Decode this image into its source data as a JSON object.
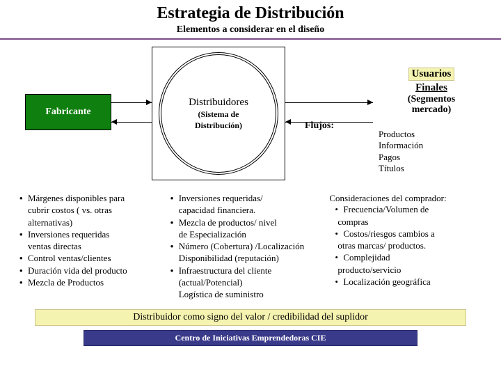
{
  "header": {
    "title": "Estrategia de Distribución",
    "subtitle": "Elementos a considerar en el diseño"
  },
  "diagram": {
    "fabricante": {
      "label": "Fabricante",
      "bg": "#0f7f0f"
    },
    "distribuidores": {
      "title": "Distribuidores",
      "sub1": "(Sistema de",
      "sub2": "Distribución)"
    },
    "usuarios": {
      "title": "Usuarios",
      "finales": "Finales",
      "seg1": "(Segmentos",
      "seg2": "mercado)"
    },
    "flujos": {
      "label": "Flujos:",
      "items": [
        "Productos",
        "Información",
        "Pagos",
        "Títulos"
      ]
    }
  },
  "columns": {
    "col1": [
      {
        "t": "b",
        "text": "Márgenes disponibles para"
      },
      {
        "t": "plain",
        "text": "cubrir costos ( vs. otras"
      },
      {
        "t": "plain",
        "text": "alternativas)"
      },
      {
        "t": "b",
        "text": "Inversiones requeridas"
      },
      {
        "t": "plain",
        "text": "ventas directas"
      },
      {
        "t": "b",
        "text": "Control ventas/clientes"
      },
      {
        "t": "b",
        "text": "Duración vida del producto"
      },
      {
        "t": "b",
        "text": "Mezcla de Productos"
      }
    ],
    "col2": [
      {
        "t": "b",
        "text": "Inversiones requeridas/"
      },
      {
        "t": "plain",
        "text": "capacidad financiera."
      },
      {
        "t": "b",
        "text": "Mezcla de productos/ nivel"
      },
      {
        "t": "plain",
        "text": "de Especialización"
      },
      {
        "t": "b",
        "text": "Número (Cobertura) /Localización"
      },
      {
        "t": "plain",
        "text": "Disponibilidad (reputación)"
      },
      {
        "t": "b",
        "text": "Infraestructura del cliente"
      },
      {
        "t": "plain",
        "text": "(actual/Potencial)"
      },
      {
        "t": "plain",
        "text": "Logística de suministro"
      }
    ],
    "col3_lead": "Consideraciones del comprador:",
    "col3": [
      {
        "t": "b2",
        "text": "Frecuencia/Volumen de"
      },
      {
        "t": "plain",
        "text": "  compras"
      },
      {
        "t": "b2",
        "text": "Costos/riesgos cambios a"
      },
      {
        "t": "plain",
        "text": "  otras marcas/ productos."
      },
      {
        "t": "b2",
        "text": "Complejidad"
      },
      {
        "t": "plain",
        "text": "  producto/servicio"
      },
      {
        "t": "b2",
        "text": "Localización geográfica"
      }
    ]
  },
  "credibility": "Distribuidor como signo del valor / credibilidad del suplidor",
  "footer": "Centro de Iniciativas Emprendedoras CIE",
  "colors": {
    "purple_rule": "#7a4a8a",
    "yellow_box": "#f5f3b0",
    "footer_bg": "#3a3a8a"
  }
}
